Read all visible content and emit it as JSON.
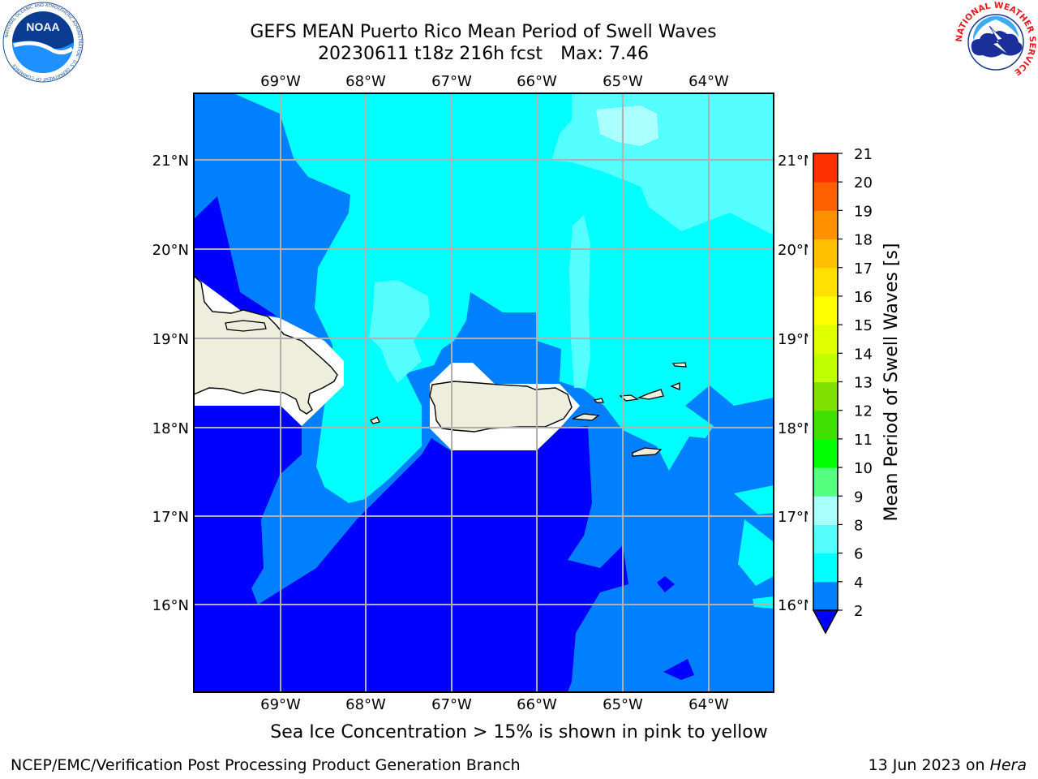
{
  "header": {
    "title_line1": "GEFS MEAN Puerto Rico Mean Period of Swell Waves",
    "title_line2": "20230611 t18z 216h fcst",
    "max_label": "Max: 7.46"
  },
  "logos": {
    "noaa": {
      "name": "noaa-logo",
      "text": "NOAA",
      "ring_text": "NATIONAL OCEANIC AND ATMOSPHERIC ADMINISTRATION · U.S. DEPARTMENT OF COMMERCE"
    },
    "nws": {
      "name": "nws-logo",
      "ring_text": "NATIONAL WEATHER SERVICE"
    }
  },
  "map": {
    "lon_labels": [
      "69°W",
      "68°W",
      "67°W",
      "66°W",
      "65°W",
      "64°W"
    ],
    "lat_labels": [
      "21°N",
      "20°N",
      "19°N",
      "18°N",
      "17°N",
      "16°N"
    ],
    "colors": {
      "level_2_4": "#0080ff",
      "level_below_2": "#0000ff",
      "level_4_6": "#00ffff",
      "level_6_8": "#55ffff",
      "level_8_9": "#aaffff",
      "land": "#eeeedd",
      "gridline": "#b0b0b0"
    }
  },
  "colorbar": {
    "label": "Mean Period of Swell Waves [s]",
    "ticks": [
      "2",
      "4",
      "6",
      "8",
      "9",
      "10",
      "11",
      "12",
      "13",
      "14",
      "15",
      "16",
      "17",
      "18",
      "19",
      "20",
      "21"
    ],
    "colors": [
      "#0080ff",
      "#00ffff",
      "#55ffff",
      "#aaffff",
      "#55ff80",
      "#00ff00",
      "#40e000",
      "#80e000",
      "#c0ff00",
      "#e0ff00",
      "#ffff00",
      "#ffe000",
      "#ffc000",
      "#ff9000",
      "#ff6000",
      "#ff3000"
    ],
    "extend_color": "#0000ff"
  },
  "caption": "Sea Ice Concentration > 15% is shown in pink to yellow",
  "footer": {
    "left": "NCEP/EMC/Verification Post Processing Product Generation Branch",
    "right_date": "13 Jun 2023 on",
    "right_machine": "Hera"
  }
}
